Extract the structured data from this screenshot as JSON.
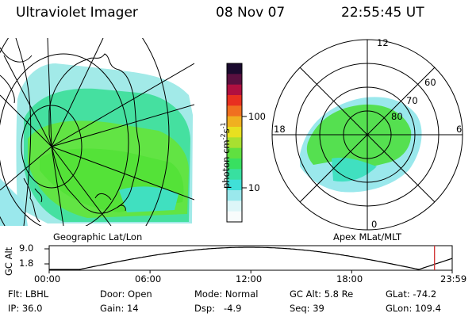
{
  "header": {
    "instrument": "Ultraviolet Imager",
    "date": "08 Nov 07",
    "time": "22:55:45 UT"
  },
  "left_panel": {
    "label": "Geographic Lat/Lon"
  },
  "colorbar": {
    "unit_main": "photon cm",
    "unit_exp1": "-2",
    "unit_mid": "s",
    "unit_exp2": "-1",
    "tick_100": "100",
    "tick_10": "10",
    "colors": [
      "#1a0a2e",
      "#5a1040",
      "#b01040",
      "#e83020",
      "#f07020",
      "#f0b020",
      "#e8e020",
      "#a8e030",
      "#60e040",
      "#38e060",
      "#38e0a0",
      "#40e0d8",
      "#9ae8ec",
      "#ddf6f8",
      "#f8fcfc"
    ]
  },
  "right_panel": {
    "label": "Apex MLat/MLT",
    "mlt_labels": {
      "top": "12",
      "left": "18",
      "right": "6",
      "bottom": "0"
    },
    "lat_labels": [
      "60",
      "70",
      "80"
    ]
  },
  "timeline": {
    "ylabel": "GC Alt",
    "ymax": "9.0",
    "ymin": "1.8",
    "xticks": [
      "00:00",
      "06:00",
      "12:00",
      "18:00",
      "23:59"
    ],
    "marker_hour": 22.93,
    "marker_color": "#d03030"
  },
  "status": {
    "flt_label": "Flt:",
    "flt_value": "LBHL",
    "ip_label": "IP:",
    "ip_value": "36.0",
    "door_label": "Door:",
    "door_value": "Open",
    "gain_label": "Gain:",
    "gain_value": "14",
    "mode_label": "Mode:",
    "mode_value": "Normal",
    "dsp_label": "Dsp:",
    "dsp_value": "-4.9",
    "gcalt_label": "GC Alt:",
    "gcalt_value": "5.8 Re",
    "seq_label": "Seq:",
    "seq_value": "39",
    "glat_label": "GLat:",
    "glat_value": "-74.2",
    "glon_label": "GLon:",
    "glon_value": "109.4"
  }
}
